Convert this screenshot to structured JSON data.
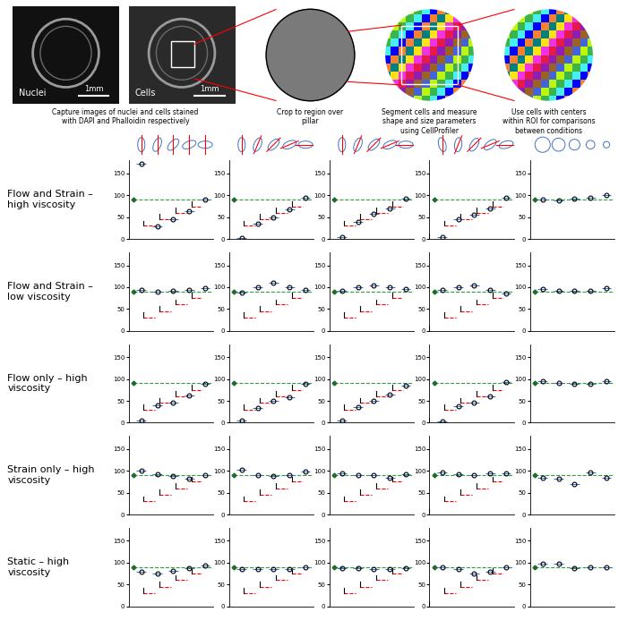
{
  "pipeline": {
    "images": [
      {
        "label": "Nuclei",
        "scale_bar": "1mm"
      },
      {
        "label": "Cells",
        "scale_bar": "1mm"
      }
    ],
    "captions": [
      "Capture images of nuclei and cells stained with DAPI and Phalloidin respectively",
      "Crop to region over pillar",
      "Segment cells and measure shape and size parameters using CellProfiler",
      "Use cells with centers within ROI for comparisons between conditions"
    ]
  },
  "rows": [
    "Flow and Strain – high viscosity",
    "Flow and Strain – low viscosity",
    "Flow only – high viscosity",
    "Strain only – high viscosity",
    "Static – high viscosity"
  ],
  "chart_data": [
    {
      "type": "scatter",
      "categories": [
        null,
        null,
        null,
        null,
        null
      ],
      "values": [
        172,
        28,
        45,
        63,
        90
      ],
      "reference": 90,
      "expected": [
        0,
        30,
        45,
        60,
        75
      ],
      "marker": "o",
      "color": "#000000",
      "ylim": [
        0,
        180
      ],
      "yticks": [
        0,
        50,
        100,
        150
      ],
      "tick_labels": "y"
    },
    {
      "type": "scatter",
      "categories": [
        null,
        null,
        null,
        null,
        null
      ],
      "values": [
        3,
        35,
        50,
        68,
        95
      ],
      "reference": 90,
      "expected": [
        0,
        30,
        45,
        60,
        75
      ],
      "marker": "o",
      "color": "#000000",
      "ylim": [
        0,
        180
      ],
      "yticks": [
        0,
        50,
        100,
        150
      ],
      "tick_labels": "y"
    },
    {
      "type": "scatter",
      "categories": [
        null,
        null,
        null,
        null,
        null
      ],
      "values": [
        5,
        40,
        58,
        70,
        93
      ],
      "reference": 90,
      "expected": [
        0,
        30,
        45,
        60,
        75
      ],
      "marker": "o",
      "color": "#000000",
      "ylim": [
        0,
        180
      ],
      "yticks": [
        0,
        50,
        100,
        150
      ],
      "tick_labels": "y"
    },
    {
      "type": "scatter",
      "categories": [
        null,
        null,
        null,
        null,
        null
      ],
      "values": [
        5,
        45,
        55,
        70,
        95
      ],
      "reference": 90,
      "expected": [
        0,
        30,
        45,
        60,
        75
      ],
      "marker": "o",
      "color": "#000000",
      "ylim": [
        0,
        180
      ],
      "yticks": [
        0,
        50,
        100,
        150
      ],
      "tick_labels": "y"
    },
    {
      "type": "scatter",
      "categories": [
        null,
        null,
        null,
        null,
        null
      ],
      "values": [
        90,
        88,
        92,
        95,
        100
      ],
      "reference": 90,
      "marker": "o",
      "color": "#000000",
      "ylim": [
        0,
        180
      ],
      "yticks": [
        0,
        50,
        100,
        150
      ],
      "tick_labels": "y"
    },
    {
      "type": "scatter",
      "categories": [
        null,
        null,
        null,
        null,
        null
      ],
      "values": [
        93,
        90,
        92,
        93,
        97
      ],
      "reference": 90,
      "expected": [
        0,
        30,
        45,
        60,
        75
      ],
      "marker": "o",
      "color": "#000000",
      "ylim": [
        0,
        180
      ],
      "yticks": [
        0,
        50,
        100,
        150
      ],
      "tick_labels": "y"
    },
    {
      "type": "scatter",
      "categories": [
        null,
        null,
        null,
        null,
        null
      ],
      "values": [
        88,
        100,
        110,
        100,
        93
      ],
      "reference": 90,
      "expected": [
        0,
        30,
        45,
        60,
        75
      ],
      "marker": "o",
      "color": "#000000",
      "ylim": [
        0,
        180
      ],
      "yticks": [
        0,
        50,
        100,
        150
      ],
      "tick_labels": "y"
    },
    {
      "type": "scatter",
      "categories": [
        null,
        null,
        null,
        null,
        null
      ],
      "values": [
        92,
        100,
        105,
        100,
        95
      ],
      "reference": 90,
      "expected": [
        0,
        30,
        45,
        60,
        75
      ],
      "marker": "o",
      "color": "#000000",
      "ylim": [
        0,
        180
      ],
      "yticks": [
        0,
        50,
        100,
        150
      ],
      "tick_labels": "y"
    },
    {
      "type": "scatter",
      "categories": [
        null,
        null,
        null,
        null,
        null
      ],
      "values": [
        93,
        100,
        103,
        93,
        85
      ],
      "reference": 90,
      "expected": [
        0,
        30,
        45,
        60,
        75
      ],
      "marker": "o",
      "color": "#000000",
      "ylim": [
        0,
        180
      ],
      "yticks": [
        0,
        50,
        100,
        150
      ],
      "tick_labels": "y"
    },
    {
      "type": "scatter",
      "categories": [
        null,
        null,
        null,
        null,
        null
      ],
      "values": [
        95,
        92,
        92,
        92,
        97
      ],
      "reference": 90,
      "marker": "o",
      "color": "#000000",
      "ylim": [
        0,
        180
      ],
      "yticks": [
        0,
        50,
        100,
        150
      ],
      "tick_labels": "y"
    },
    {
      "type": "scatter",
      "categories": [
        null,
        null,
        null,
        null,
        null
      ],
      "values": [
        5,
        40,
        45,
        62,
        88
      ],
      "reference": 90,
      "expected": [
        0,
        30,
        45,
        60,
        75
      ],
      "marker": "o",
      "color": "#000000",
      "ylim": [
        0,
        180
      ],
      "yticks": [
        0,
        50,
        100,
        150
      ],
      "tick_labels": "y"
    },
    {
      "type": "scatter",
      "categories": [
        null,
        null,
        null,
        null,
        null
      ],
      "values": [
        5,
        33,
        50,
        58,
        88
      ],
      "reference": 90,
      "expected": [
        0,
        30,
        45,
        60,
        75
      ],
      "marker": "o",
      "color": "#000000",
      "ylim": [
        0,
        180
      ],
      "yticks": [
        0,
        50,
        100,
        150
      ],
      "tick_labels": "y"
    },
    {
      "type": "scatter",
      "categories": [
        null,
        null,
        null,
        null,
        null
      ],
      "values": [
        5,
        35,
        50,
        65,
        85
      ],
      "reference": 90,
      "expected": [
        0,
        30,
        45,
        60,
        75
      ],
      "marker": "o",
      "color": "#000000",
      "ylim": [
        0,
        180
      ],
      "yticks": [
        0,
        50,
        100,
        150
      ],
      "tick_labels": "y"
    },
    {
      "type": "scatter",
      "categories": [
        null,
        null,
        null,
        null,
        null
      ],
      "values": [
        3,
        38,
        45,
        60,
        93
      ],
      "reference": 90,
      "expected": [
        0,
        30,
        45,
        60,
        75
      ],
      "marker": "o",
      "color": "#000000",
      "ylim": [
        0,
        180
      ],
      "yticks": [
        0,
        50,
        100,
        150
      ],
      "tick_labels": "y"
    },
    {
      "type": "scatter",
      "categories": [
        null,
        null,
        null,
        null,
        null
      ],
      "values": [
        95,
        90,
        88,
        88,
        95
      ],
      "reference": 90,
      "marker": "o",
      "color": "#000000",
      "ylim": [
        0,
        180
      ],
      "yticks": [
        0,
        50,
        100,
        150
      ],
      "tick_labels": "y"
    },
    {
      "type": "scatter",
      "categories": [
        null,
        null,
        null,
        null,
        null
      ],
      "values": [
        100,
        92,
        88,
        82,
        90
      ],
      "reference": 90,
      "expected": [
        0,
        30,
        45,
        60,
        75
      ],
      "marker": "o",
      "color": "#000000",
      "ylim": [
        0,
        180
      ],
      "yticks": [
        0,
        50,
        100,
        150
      ],
      "tick_labels": "y"
    },
    {
      "type": "scatter",
      "categories": [
        null,
        null,
        null,
        null,
        null
      ],
      "values": [
        103,
        90,
        88,
        90,
        98
      ],
      "reference": 90,
      "expected": [
        0,
        30,
        45,
        60,
        75
      ],
      "marker": "o",
      "color": "#000000",
      "ylim": [
        0,
        180
      ],
      "yticks": [
        0,
        50,
        100,
        150
      ],
      "tick_labels": "y"
    },
    {
      "type": "scatter",
      "categories": [
        null,
        null,
        null,
        null,
        null
      ],
      "values": [
        95,
        90,
        90,
        85,
        92
      ],
      "reference": 90,
      "expected": [
        0,
        30,
        45,
        60,
        75
      ],
      "marker": "o",
      "color": "#000000",
      "ylim": [
        0,
        180
      ],
      "yticks": [
        0,
        50,
        100,
        150
      ],
      "tick_labels": "y"
    },
    {
      "type": "scatter",
      "categories": [
        null,
        null,
        null,
        null,
        null
      ],
      "values": [
        97,
        92,
        90,
        95,
        95
      ],
      "reference": 90,
      "expected": [
        0,
        30,
        45,
        60,
        75
      ],
      "marker": "o",
      "color": "#000000",
      "ylim": [
        0,
        180
      ],
      "yticks": [
        0,
        50,
        100,
        150
      ],
      "tick_labels": "y"
    },
    {
      "type": "scatter",
      "categories": [
        null,
        null,
        null,
        null,
        null
      ],
      "values": [
        85,
        82,
        70,
        97,
        85
      ],
      "reference": 90,
      "marker": "o",
      "color": "#000000",
      "ylim": [
        0,
        180
      ],
      "yticks": [
        0,
        50,
        100,
        150
      ],
      "tick_labels": "y"
    },
    {
      "type": "scatter",
      "categories": [
        null,
        null,
        null,
        null,
        null
      ],
      "values": [
        80,
        75,
        82,
        88,
        93
      ],
      "reference": 90,
      "expected": [
        0,
        30,
        45,
        60,
        75
      ],
      "marker": "o",
      "color": "#000000",
      "ylim": [
        0,
        180
      ],
      "yticks": [
        0,
        50,
        100,
        150
      ],
      "tick_labels": "y"
    },
    {
      "type": "scatter",
      "categories": [
        null,
        null,
        null,
        null,
        null
      ],
      "values": [
        85,
        85,
        85,
        85,
        90
      ],
      "reference": 90,
      "expected": [
        0,
        30,
        45,
        60,
        75
      ],
      "marker": "o",
      "color": "#000000",
      "ylim": [
        0,
        180
      ],
      "yticks": [
        0,
        50,
        100,
        150
      ],
      "tick_labels": "y"
    },
    {
      "type": "scatter",
      "categories": [
        null,
        null,
        null,
        null,
        null
      ],
      "values": [
        88,
        88,
        85,
        85,
        88
      ],
      "reference": 90,
      "expected": [
        0,
        30,
        45,
        60,
        75
      ],
      "marker": "o",
      "color": "#000000",
      "ylim": [
        0,
        180
      ],
      "yticks": [
        0,
        50,
        100,
        150
      ],
      "tick_labels": "y"
    },
    {
      "type": "scatter",
      "categories": [
        null,
        null,
        null,
        null,
        null
      ],
      "values": [
        90,
        85,
        75,
        80,
        90
      ],
      "reference": 90,
      "expected": [
        0,
        30,
        45,
        60,
        75
      ],
      "marker": "o",
      "color": "#000000",
      "ylim": [
        0,
        180
      ],
      "yticks": [
        0,
        50,
        100,
        150
      ],
      "tick_labels": "y"
    },
    {
      "type": "scatter",
      "categories": [
        null,
        null,
        null,
        null,
        null
      ],
      "values": [
        98,
        98,
        88,
        90,
        90
      ],
      "reference": 90,
      "marker": "o",
      "color": "#000000",
      "ylim": [
        0,
        180
      ],
      "yticks": [
        0,
        50,
        100,
        150
      ],
      "tick_labels": "y"
    }
  ]
}
